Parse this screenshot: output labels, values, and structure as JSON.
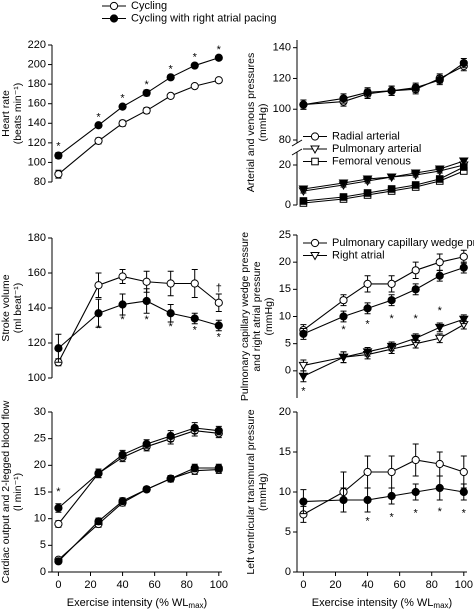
{
  "chart_data": [
    {
      "type": "line",
      "ylabel": [
        "Heart rate",
        "(beats min⁻¹)"
      ],
      "legend": "above",
      "x": [
        0,
        25,
        40,
        55,
        70,
        85,
        100
      ],
      "xlim": [
        -4,
        102
      ],
      "ylim": [
        80,
        220
      ],
      "yticks": [
        80,
        100,
        120,
        140,
        160,
        180,
        200,
        220
      ],
      "series": [
        {
          "name": "Cycling",
          "marker": "circle",
          "fill": "open",
          "values": [
            88,
            122,
            140,
            153,
            168,
            178,
            184
          ],
          "errors": [
            4,
            3,
            3,
            3,
            2,
            2,
            2
          ]
        },
        {
          "name": "Cycling with right atrial pacing",
          "marker": "circle",
          "fill": "filled",
          "values": [
            107,
            138,
            157,
            171,
            187,
            199,
            207
          ],
          "errors": [
            3,
            2,
            2,
            3,
            2,
            2,
            2
          ]
        }
      ],
      "annotations": [
        {
          "text": "*",
          "x": 0,
          "y": 116
        },
        {
          "text": "*",
          "x": 25,
          "y": 146
        },
        {
          "text": "*",
          "x": 40,
          "y": 165
        },
        {
          "text": "*",
          "x": 55,
          "y": 179
        },
        {
          "text": "*",
          "x": 70,
          "y": 195
        },
        {
          "text": "*",
          "x": 85,
          "y": 207
        },
        {
          "text": "*",
          "x": 100,
          "y": 215
        }
      ]
    },
    {
      "type": "line",
      "ylabel": [
        "Stroke volume",
        "(ml beat⁻¹)"
      ],
      "x": [
        0,
        25,
        40,
        55,
        70,
        85,
        100
      ],
      "xlim": [
        -4,
        102
      ],
      "ylim": [
        100,
        180
      ],
      "yticks": [
        100,
        120,
        140,
        160,
        180
      ],
      "series": [
        {
          "marker": "circle",
          "fill": "open",
          "values": [
            109,
            153,
            158,
            155,
            154,
            154,
            143
          ],
          "errors": [
            2,
            7,
            4,
            6,
            7,
            8,
            5
          ]
        },
        {
          "marker": "circle",
          "fill": "filled",
          "values": [
            117,
            137,
            142,
            144,
            137,
            134,
            130
          ],
          "errors": [
            8,
            8,
            6,
            7,
            5,
            3,
            3
          ]
        }
      ],
      "annotations": [
        {
          "text": "†",
          "x": 100,
          "y": 151
        },
        {
          "text": "*",
          "x": 25,
          "y": 128
        },
        {
          "text": "*",
          "x": 40,
          "y": 133
        },
        {
          "text": "*",
          "x": 55,
          "y": 133
        },
        {
          "text": "*",
          "x": 70,
          "y": 129
        },
        {
          "text": "*",
          "x": 85,
          "y": 127
        },
        {
          "text": "*",
          "x": 100,
          "y": 123
        }
      ]
    },
    {
      "type": "line",
      "ylabel": [
        "Cardiac output and 2-legged blood flow",
        "(l min⁻¹)"
      ],
      "xlabel": {
        "text": "Exercise intensity (% WL",
        "sub": "max",
        "tail": ")"
      },
      "x": [
        0,
        25,
        40,
        55,
        70,
        85,
        100
      ],
      "xlim": [
        -4,
        102
      ],
      "xticks": [
        0,
        20,
        40,
        60,
        80,
        100
      ],
      "ylim": [
        0,
        30
      ],
      "yticks": [
        0,
        5,
        10,
        15,
        20,
        25,
        30
      ],
      "series": [
        {
          "marker": "circle",
          "fill": "open",
          "values": [
            9,
            18.5,
            21.5,
            23.5,
            25,
            26.5,
            26
          ],
          "errors": [
            0.6,
            0.8,
            0.8,
            0.8,
            1,
            1,
            0.8
          ]
        },
        {
          "marker": "circle",
          "fill": "filled",
          "values": [
            12,
            18.5,
            22,
            24,
            25.5,
            27,
            26.5
          ],
          "errors": [
            0.8,
            0.8,
            0.8,
            0.8,
            1,
            1,
            0.8
          ]
        },
        {
          "marker": "circle",
          "fill": "open",
          "values": [
            2.3,
            9,
            13,
            15.5,
            17.5,
            19,
            19.2
          ],
          "errors": [
            0.4,
            0.6,
            0.6,
            0.5,
            0.6,
            0.7,
            0.7
          ]
        },
        {
          "marker": "circle",
          "fill": "filled",
          "values": [
            2,
            9.5,
            13.3,
            15.5,
            17.5,
            19.5,
            19.5
          ],
          "errors": [
            0.4,
            0.6,
            0.6,
            0.5,
            0.6,
            0.7,
            0.7
          ]
        }
      ],
      "annotations": [
        {
          "text": "*",
          "x": 0,
          "y": 15
        }
      ]
    },
    {
      "type": "line",
      "ylabel": [
        "Arterial and venous pressures",
        "(mmHg)"
      ],
      "legend": "center-left",
      "broken_axis": true,
      "x": [
        0,
        25,
        40,
        55,
        70,
        85,
        100
      ],
      "xlim": [
        -4,
        102
      ],
      "ylim": [
        0,
        25
      ],
      "yticks": [
        0,
        20
      ],
      "upper_ylim": [
        80,
        145
      ],
      "upper_yticks": [
        80,
        100,
        120,
        140
      ],
      "series": [
        {
          "name": "Radial arterial",
          "marker": "circle",
          "fill": "open",
          "values": [
            103,
            105,
            110,
            112,
            113,
            120,
            128
          ],
          "errors": [
            3,
            3,
            3,
            3,
            3,
            3,
            3
          ]
        },
        {
          "marker": "circle",
          "fill": "filled",
          "values": [
            103,
            107,
            111,
            112,
            114,
            119,
            130
          ],
          "errors": [
            3,
            3,
            3,
            3,
            3,
            3,
            3
          ]
        },
        {
          "name": "Pulmonary arterial",
          "marker": "triangle",
          "fill": "open",
          "values": [
            7,
            10,
            12,
            14,
            15,
            17,
            20
          ],
          "errors": [
            1,
            1,
            1,
            1,
            1,
            1,
            1.5
          ]
        },
        {
          "marker": "triangle",
          "fill": "filled",
          "values": [
            8,
            11,
            13,
            14,
            16,
            18,
            22
          ],
          "errors": [
            1,
            1,
            1,
            1,
            1,
            1,
            1.5
          ]
        },
        {
          "name": "Femoral venous",
          "marker": "square",
          "fill": "open",
          "values": [
            1,
            3,
            5,
            7,
            9,
            12,
            17
          ],
          "errors": [
            0.8,
            0.8,
            0.8,
            0.8,
            1,
            1,
            1.2
          ]
        },
        {
          "marker": "square",
          "fill": "filled",
          "values": [
            2,
            4,
            6,
            8,
            10,
            13,
            19
          ],
          "errors": [
            0.8,
            0.8,
            0.8,
            0.8,
            1,
            1,
            1.2
          ]
        }
      ]
    },
    {
      "type": "line",
      "ylabel": [
        "Pulmonary capillary wedge pressure",
        "and right atrial pressure",
        "(mmHg)"
      ],
      "legend": "upper-left",
      "x": [
        0,
        25,
        40,
        55,
        70,
        85,
        100
      ],
      "xlim": [
        -4,
        102
      ],
      "ylim": [
        -5,
        25
      ],
      "yticks": [
        0,
        5,
        10,
        15,
        20,
        25
      ],
      "series": [
        {
          "name": "Pulmonary capillary wedge pressure",
          "marker": "circle",
          "fill": "open",
          "values": [
            7.5,
            13,
            16,
            16,
            18.5,
            20,
            21
          ],
          "errors": [
            1,
            1,
            1.5,
            1.5,
            1.5,
            1.5,
            1.2
          ]
        },
        {
          "marker": "circle",
          "fill": "filled",
          "values": [
            6.8,
            10,
            11.5,
            13,
            15,
            17.5,
            19
          ],
          "errors": [
            1,
            1,
            1,
            1,
            1,
            1,
            1
          ]
        },
        {
          "name": "Right atrial",
          "marker": "triangle",
          "fill": "open",
          "values": [
            1,
            2.5,
            3,
            4,
            5,
            6,
            8.5
          ],
          "errors": [
            1,
            1,
            0.8,
            0.8,
            0.8,
            0.8,
            0.8
          ]
        },
        {
          "marker": "triangle",
          "fill": "filled",
          "values": [
            -1,
            2.5,
            3.5,
            4.5,
            6,
            8,
            9.5
          ],
          "errors": [
            1,
            1,
            0.8,
            0.8,
            0.8,
            0.8,
            0.8
          ]
        }
      ],
      "annotations": [
        {
          "text": "*",
          "x": 0,
          "y": -3.8
        },
        {
          "text": "*",
          "x": 25,
          "y": 7.5
        },
        {
          "text": "*",
          "x": 40,
          "y": 8.5
        },
        {
          "text": "*",
          "x": 55,
          "y": 9.5
        },
        {
          "text": "*",
          "x": 70,
          "y": 9.5
        },
        {
          "text": "*",
          "x": 85,
          "y": 11
        }
      ]
    },
    {
      "type": "line",
      "ylabel": [
        "Left ventricular transmural pressure",
        "(mmHg)"
      ],
      "xlabel": {
        "text": "Exercise intensity (% WL",
        "sub": "max",
        "tail": ")"
      },
      "x": [
        0,
        25,
        40,
        55,
        70,
        85,
        100
      ],
      "xlim": [
        -4,
        102
      ],
      "xticks": [
        0,
        20,
        40,
        60,
        80,
        100
      ],
      "ylim": [
        0,
        20
      ],
      "yticks": [
        0,
        5,
        10,
        15,
        20
      ],
      "series": [
        {
          "marker": "circle",
          "fill": "open",
          "values": [
            7.2,
            10,
            12.5,
            12.5,
            14,
            13.5,
            12.5
          ],
          "errors": [
            1,
            2.5,
            2,
            2,
            2,
            1.5,
            2
          ]
        },
        {
          "marker": "circle",
          "fill": "filled",
          "values": [
            8.8,
            9,
            9,
            9.5,
            10,
            10.5,
            10
          ],
          "errors": [
            1.5,
            1.5,
            1.5,
            1,
            1,
            1.5,
            1
          ]
        }
      ],
      "annotations": [
        {
          "text": "*",
          "x": 40,
          "y": 6.3
        },
        {
          "text": "*",
          "x": 55,
          "y": 6.8
        },
        {
          "text": "*",
          "x": 70,
          "y": 7.3
        },
        {
          "text": "*",
          "x": 85,
          "y": 7.5
        },
        {
          "text": "*",
          "x": 100,
          "y": 7.3
        }
      ]
    }
  ]
}
